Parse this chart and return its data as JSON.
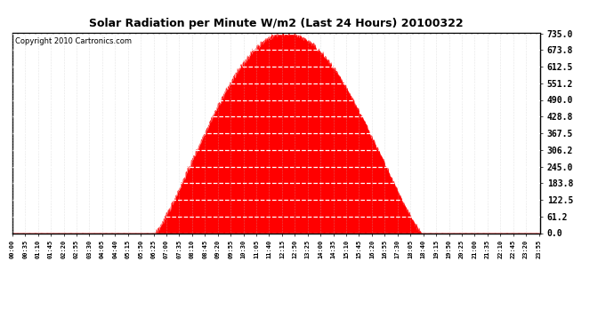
{
  "title": "Solar Radiation per Minute W/m2 (Last 24 Hours) 20100322",
  "copyright": "Copyright 2010 Cartronics.com",
  "fill_color": "#FF0000",
  "line_color": "#FF0000",
  "dashed_line_color": "#FF0000",
  "bg_color": "#FFFFFF",
  "grid_color": "#C0C0C0",
  "ytick_labels": [
    "0.0",
    "61.2",
    "122.5",
    "183.8",
    "245.0",
    "306.2",
    "367.5",
    "428.8",
    "490.0",
    "551.2",
    "612.5",
    "673.8",
    "735.0"
  ],
  "ytick_values": [
    0.0,
    61.2,
    122.5,
    183.8,
    245.0,
    306.2,
    367.5,
    428.8,
    490.0,
    551.2,
    612.5,
    673.8,
    735.0
  ],
  "ymax": 735.0,
  "ymin": 0.0,
  "peak_hour": 12.417,
  "peak_value": 735.0,
  "sunrise_hour": 6.5,
  "sunset_hour": 18.583,
  "total_minutes": 1440,
  "tick_step_minutes": 35,
  "title_fontsize": 9,
  "copyright_fontsize": 6,
  "ytick_fontsize": 7,
  "xtick_fontsize": 5
}
